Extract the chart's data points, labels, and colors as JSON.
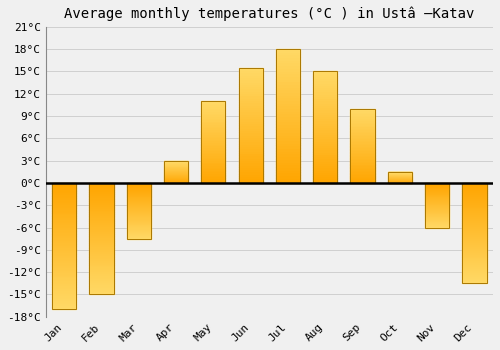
{
  "months": [
    "Jan",
    "Feb",
    "Mar",
    "Apr",
    "May",
    "Jun",
    "Jul",
    "Aug",
    "Sep",
    "Oct",
    "Nov",
    "Dec"
  ],
  "values": [
    -17,
    -15,
    -7.5,
    3,
    11,
    15.5,
    18,
    15,
    10,
    1.5,
    -6,
    -13.5
  ],
  "bar_color_top": "#FFD966",
  "bar_color_bottom": "#FFA500",
  "bar_edge_color": "#AA7700",
  "title": "Average monthly temperatures (°C ) in Ustâ–Katav",
  "title_display": "Average monthly temperatures (°C ) in Ustâ  –Katav",
  "ylim": [
    -18,
    21
  ],
  "yticks": [
    -18,
    -15,
    -12,
    -9,
    -6,
    -3,
    0,
    3,
    6,
    9,
    12,
    15,
    18,
    21
  ],
  "ytick_labels": [
    "-18°C",
    "-15°C",
    "-12°C",
    "-9°C",
    "-6°C",
    "-3°C",
    "0°C",
    "3°C",
    "6°C",
    "9°C",
    "12°C",
    "15°C",
    "18°C",
    "21°C"
  ],
  "background_color": "#F0F0F0",
  "grid_color": "#D0D0D0",
  "zero_line_color": "#000000",
  "title_fontsize": 10,
  "tick_fontsize": 8,
  "bar_width": 0.65,
  "figsize": [
    5.0,
    3.5
  ],
  "dpi": 100
}
